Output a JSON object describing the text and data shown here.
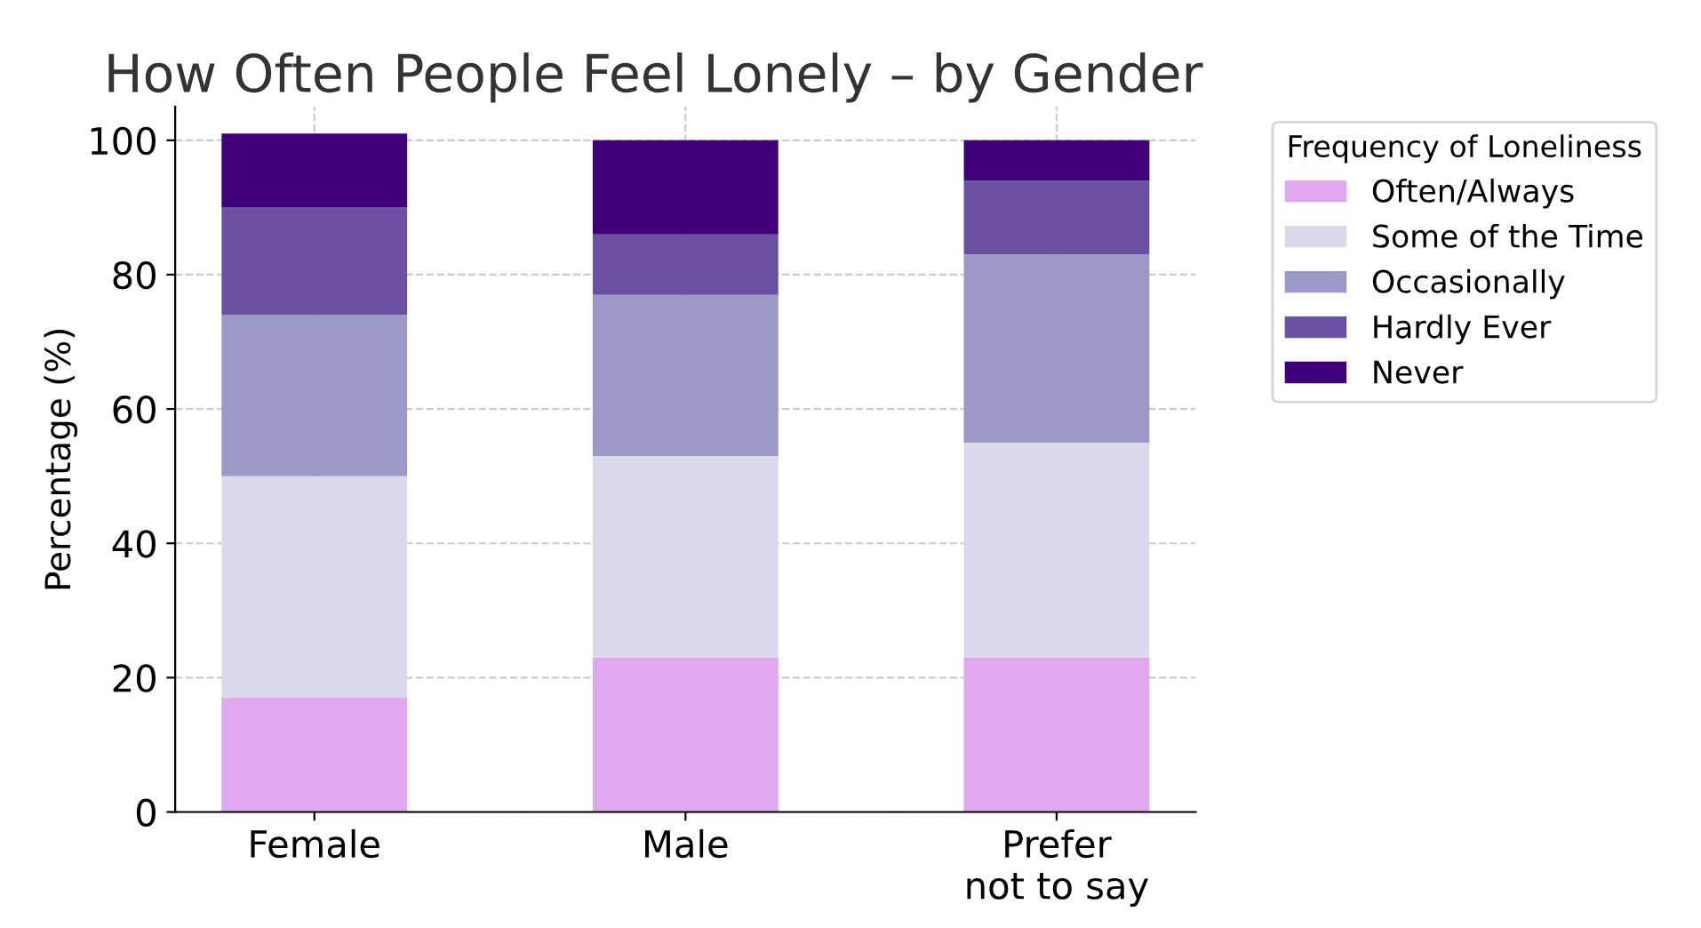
{
  "chart_data": {
    "type": "bar",
    "stacked": true,
    "title": "How Often People Feel Lonely – by Gender",
    "ylabel": "Percentage (%)",
    "legend_title": "Frequency of Loneliness",
    "categories": [
      "Female",
      "Male",
      "Prefer\nnot to say"
    ],
    "series": [
      {
        "name": "Often/Always",
        "color": "#e0a8ee",
        "values": [
          17,
          23,
          23
        ]
      },
      {
        "name": "Some of the Time",
        "color": "#dadaea",
        "values": [
          33,
          30,
          32
        ]
      },
      {
        "name": "Occasionally",
        "color": "#9c98c8",
        "values": [
          24,
          24,
          28
        ]
      },
      {
        "name": "Hardly Ever",
        "color": "#6a51a3",
        "values": [
          16,
          9,
          11
        ]
      },
      {
        "name": "Never",
        "color": "#3f0077",
        "values": [
          11,
          14,
          6
        ]
      }
    ],
    "ylim": [
      0,
      105
    ],
    "yticks": [
      0,
      20,
      40,
      60,
      80,
      100
    ],
    "grid": true,
    "legend": "top right"
  }
}
